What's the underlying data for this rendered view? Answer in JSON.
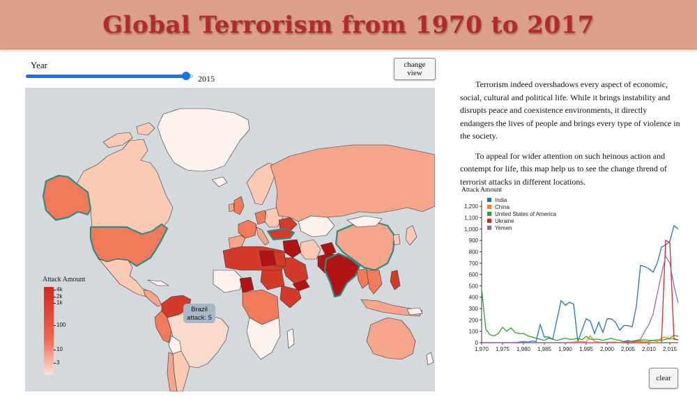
{
  "header": {
    "title": "Global Terrorism from 1970 to 2017"
  },
  "controls": {
    "year_label": "Year",
    "year_value": "2015",
    "year_min": 1970,
    "year_max": 2017,
    "change_view_label": "change view",
    "clear_label": "clear",
    "slider_color": "#1a73e8"
  },
  "map": {
    "ocean_color": "#d4d9de",
    "highlight_outline": "#2e8b84",
    "legend": {
      "title": "Attack Amount",
      "ticks": [
        "4k",
        "2k",
        "1k",
        "100",
        "10",
        "3"
      ]
    },
    "tooltip": {
      "country": "Brazil",
      "attack_text": "attack: 5"
    }
  },
  "description": {
    "paragraphs": [
      "Terrorism indeed overshadows every aspect of economic, social, cultural and political life. While it brings instability and disrupts peace and coexistence environments, it directly endangers the lives of people and brings every type of violence in the society.",
      "To appeal for wider attention on such heinous action and contempt for life, this map help us to see the change thrend of terrorist attacks in different locations."
    ]
  },
  "chart_data": {
    "type": "line",
    "title": "Attack Amount",
    "xlabel": "",
    "ylabel": "Attack Amount",
    "xlim": [
      1970,
      2017
    ],
    "ylim": [
      0,
      1250
    ],
    "x_ticks": [
      1970,
      1975,
      1980,
      1985,
      1990,
      1995,
      2000,
      2005,
      2010,
      2015
    ],
    "x_tick_labels": [
      "1,970",
      "1,975",
      "1,980",
      "1,985",
      "1,990",
      "1,995",
      "2,000",
      "2,005",
      "2,010",
      "2,015"
    ],
    "y_ticks": [
      0,
      100,
      200,
      300,
      400,
      500,
      600,
      700,
      800,
      900,
      1000,
      1100,
      1200
    ],
    "y_tick_labels": [
      "0",
      "100",
      "200",
      "300",
      "400",
      "500",
      "600",
      "700",
      "800",
      "900",
      "1,000",
      "1,100",
      "1,200"
    ],
    "legend_position": "top-left",
    "x": [
      1970,
      1971,
      1972,
      1973,
      1974,
      1975,
      1976,
      1977,
      1978,
      1979,
      1980,
      1981,
      1982,
      1983,
      1984,
      1985,
      1986,
      1987,
      1988,
      1989,
      1990,
      1991,
      1992,
      1993,
      1994,
      1995,
      1996,
      1997,
      1998,
      1999,
      2000,
      2001,
      2002,
      2003,
      2004,
      2005,
      2006,
      2007,
      2008,
      2009,
      2010,
      2011,
      2012,
      2013,
      2014,
      2015,
      2016,
      2017
    ],
    "series": [
      {
        "name": "India",
        "color": "#1f77b4",
        "values": [
          0,
          0,
          0,
          0,
          0,
          0,
          0,
          0,
          0,
          5,
          10,
          5,
          15,
          10,
          160,
          50,
          50,
          30,
          200,
          370,
          330,
          355,
          340,
          10,
          110,
          210,
          190,
          80,
          180,
          90,
          210,
          210,
          180,
          110,
          150,
          150,
          140,
          320,
          680,
          670,
          650,
          620,
          700,
          840,
          860,
          890,
          1030,
          1000
        ]
      },
      {
        "name": "China",
        "color": "#ff7f0e",
        "values": [
          0,
          0,
          0,
          0,
          0,
          0,
          0,
          0,
          0,
          0,
          0,
          0,
          0,
          0,
          0,
          0,
          0,
          0,
          0,
          0,
          0,
          2,
          5,
          10,
          8,
          5,
          60,
          10,
          5,
          3,
          3,
          5,
          5,
          2,
          2,
          3,
          3,
          10,
          8,
          6,
          10,
          20,
          10,
          40,
          50,
          30,
          40,
          20
        ]
      },
      {
        "name": "United States of America",
        "color": "#2ca02c",
        "values": [
          470,
          120,
          70,
          60,
          80,
          135,
          100,
          130,
          90,
          80,
          80,
          60,
          50,
          40,
          30,
          20,
          40,
          30,
          20,
          30,
          40,
          30,
          30,
          40,
          25,
          55,
          30,
          30,
          30,
          20,
          30,
          40,
          25,
          20,
          10,
          20,
          10,
          15,
          20,
          25,
          20,
          20,
          25,
          20,
          30,
          40,
          65,
          55
        ]
      },
      {
        "name": "Ukraine",
        "color": "#d62728",
        "values": [
          0,
          0,
          0,
          0,
          0,
          0,
          0,
          0,
          0,
          0,
          0,
          0,
          0,
          0,
          0,
          0,
          0,
          0,
          0,
          0,
          0,
          0,
          0,
          0,
          0,
          0,
          0,
          0,
          0,
          0,
          0,
          0,
          0,
          0,
          0,
          0,
          0,
          0,
          0,
          0,
          0,
          0,
          0,
          0,
          900,
          880,
          30,
          25
        ]
      },
      {
        "name": "Yemen",
        "color": "#9467bd",
        "values": [
          0,
          0,
          0,
          0,
          0,
          0,
          0,
          0,
          0,
          0,
          0,
          0,
          0,
          0,
          0,
          0,
          0,
          0,
          0,
          0,
          0,
          0,
          0,
          0,
          0,
          0,
          0,
          0,
          0,
          0,
          0,
          0,
          0,
          0,
          5,
          10,
          15,
          20,
          30,
          100,
          160,
          250,
          430,
          600,
          760,
          700,
          500,
          350
        ]
      }
    ]
  }
}
